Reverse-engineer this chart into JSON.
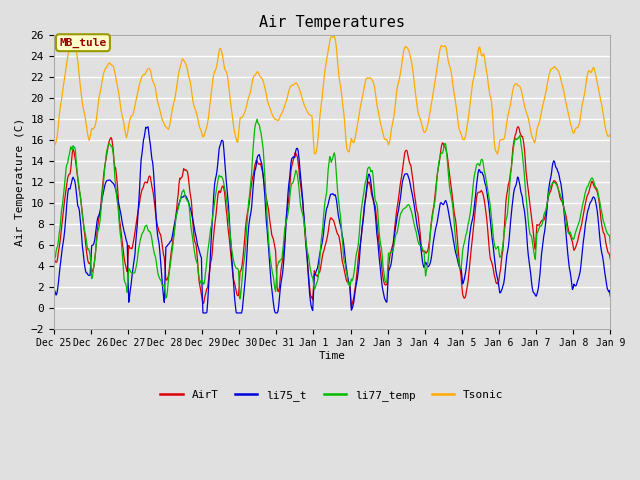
{
  "title": "Air Temperatures",
  "ylabel": "Air Temperature (C)",
  "xlabel": "Time",
  "ylim": [
    -2,
    26
  ],
  "bg_color": "#e0e0e0",
  "series_labels": [
    "AirT",
    "li75_t",
    "li77_temp",
    "Tsonic"
  ],
  "series_colors": [
    "#dd0000",
    "#0000dd",
    "#00bb00",
    "#ffaa00"
  ],
  "yticks": [
    -2,
    0,
    2,
    4,
    6,
    8,
    10,
    12,
    14,
    16,
    18,
    20,
    22,
    24,
    26
  ],
  "mb_tule_text": "MB_tule",
  "mb_tule_color": "#990000",
  "mb_tule_bg": "#ffffcc",
  "mb_tule_edge": "#999900"
}
